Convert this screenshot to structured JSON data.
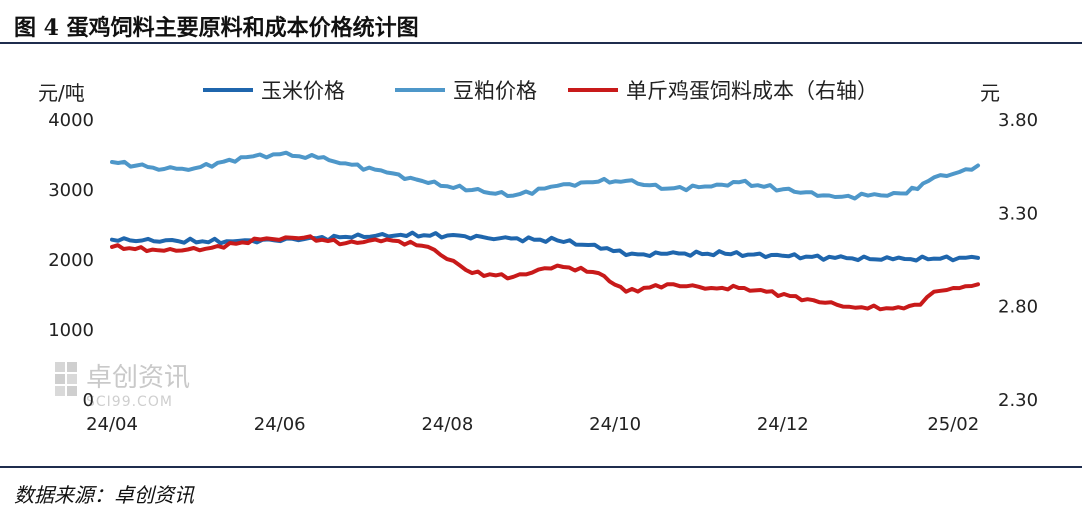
{
  "title": "图 4 蛋鸡饲料主要原料和成本价格统计图",
  "source": "数据来源：卓创资讯",
  "watermark": {
    "name": "卓创资讯",
    "site": "SCI99.COM"
  },
  "colors": {
    "corn": "#1f66ad",
    "soymeal": "#4e97c9",
    "cost": "#c81a1a",
    "rule": "#1f2d4d"
  },
  "chart_data": {
    "type": "line",
    "left_unit": "元/吨",
    "right_unit": "元",
    "left_ticks": [
      "0",
      "1000",
      "2000",
      "3000",
      "4000"
    ],
    "right_ticks": [
      "2.30",
      "2.80",
      "3.30",
      "3.80"
    ],
    "left_ylim": [
      0,
      4000
    ],
    "right_ylim": [
      2.3,
      3.8
    ],
    "x_ticks": [
      "24/04",
      "24/06",
      "24/08",
      "24/10",
      "24/12",
      "25/02"
    ],
    "x_range": [
      "2024-04-01",
      "2025-02-10"
    ],
    "legend_position": "top",
    "grid": false,
    "series": [
      {
        "name": "玉米价格",
        "axis": "left",
        "color": "#1f66ad",
        "x": [
          "2024-04-01",
          "2024-04-25",
          "2024-05-15",
          "2024-06-10",
          "2024-06-25",
          "2024-07-15",
          "2024-08-01",
          "2024-08-20",
          "2024-09-10",
          "2024-09-28",
          "2024-10-05",
          "2024-10-20",
          "2024-11-10",
          "2024-12-01",
          "2024-12-20",
          "2025-01-10",
          "2025-01-25",
          "2025-02-10"
        ],
        "values": [
          2290,
          2270,
          2265,
          2300,
          2330,
          2360,
          2350,
          2310,
          2280,
          2170,
          2070,
          2090,
          2090,
          2060,
          2030,
          2010,
          2020,
          2030
        ]
      },
      {
        "name": "豆粕价格",
        "axis": "left",
        "color": "#4e97c9",
        "x": [
          "2024-04-01",
          "2024-04-10",
          "2024-04-20",
          "2024-05-01",
          "2024-05-20",
          "2024-06-01",
          "2024-06-15",
          "2024-06-25",
          "2024-07-10",
          "2024-07-25",
          "2024-08-10",
          "2024-08-25",
          "2024-09-10",
          "2024-09-25",
          "2024-10-05",
          "2024-10-20",
          "2024-11-05",
          "2024-11-15",
          "2024-12-01",
          "2024-12-20",
          "2025-01-01",
          "2025-01-15",
          "2025-01-25",
          "2025-02-01",
          "2025-02-10"
        ],
        "values": [
          3400,
          3350,
          3300,
          3310,
          3470,
          3510,
          3460,
          3380,
          3250,
          3100,
          3000,
          2920,
          3060,
          3120,
          3130,
          3020,
          3050,
          3110,
          3010,
          2900,
          2920,
          2950,
          3180,
          3230,
          3350
        ]
      },
      {
        "name": "单斤鸡蛋饲料成本（右轴）",
        "axis": "right",
        "color": "#c81a1a",
        "x": [
          "2024-04-01",
          "2024-04-20",
          "2024-05-05",
          "2024-05-25",
          "2024-06-10",
          "2024-06-25",
          "2024-07-10",
          "2024-07-25",
          "2024-08-10",
          "2024-08-25",
          "2024-09-10",
          "2024-09-25",
          "2024-10-05",
          "2024-10-20",
          "2024-11-05",
          "2024-11-15",
          "2024-11-25",
          "2024-12-10",
          "2024-12-25",
          "2025-01-10",
          "2025-01-20",
          "2025-01-25",
          "2025-02-01",
          "2025-02-10"
        ],
        "values": [
          3.12,
          3.1,
          3.11,
          3.16,
          3.17,
          3.14,
          3.16,
          3.12,
          2.98,
          2.96,
          3.02,
          2.98,
          2.88,
          2.92,
          2.9,
          2.9,
          2.88,
          2.84,
          2.8,
          2.79,
          2.81,
          2.88,
          2.9,
          2.92
        ]
      }
    ]
  }
}
